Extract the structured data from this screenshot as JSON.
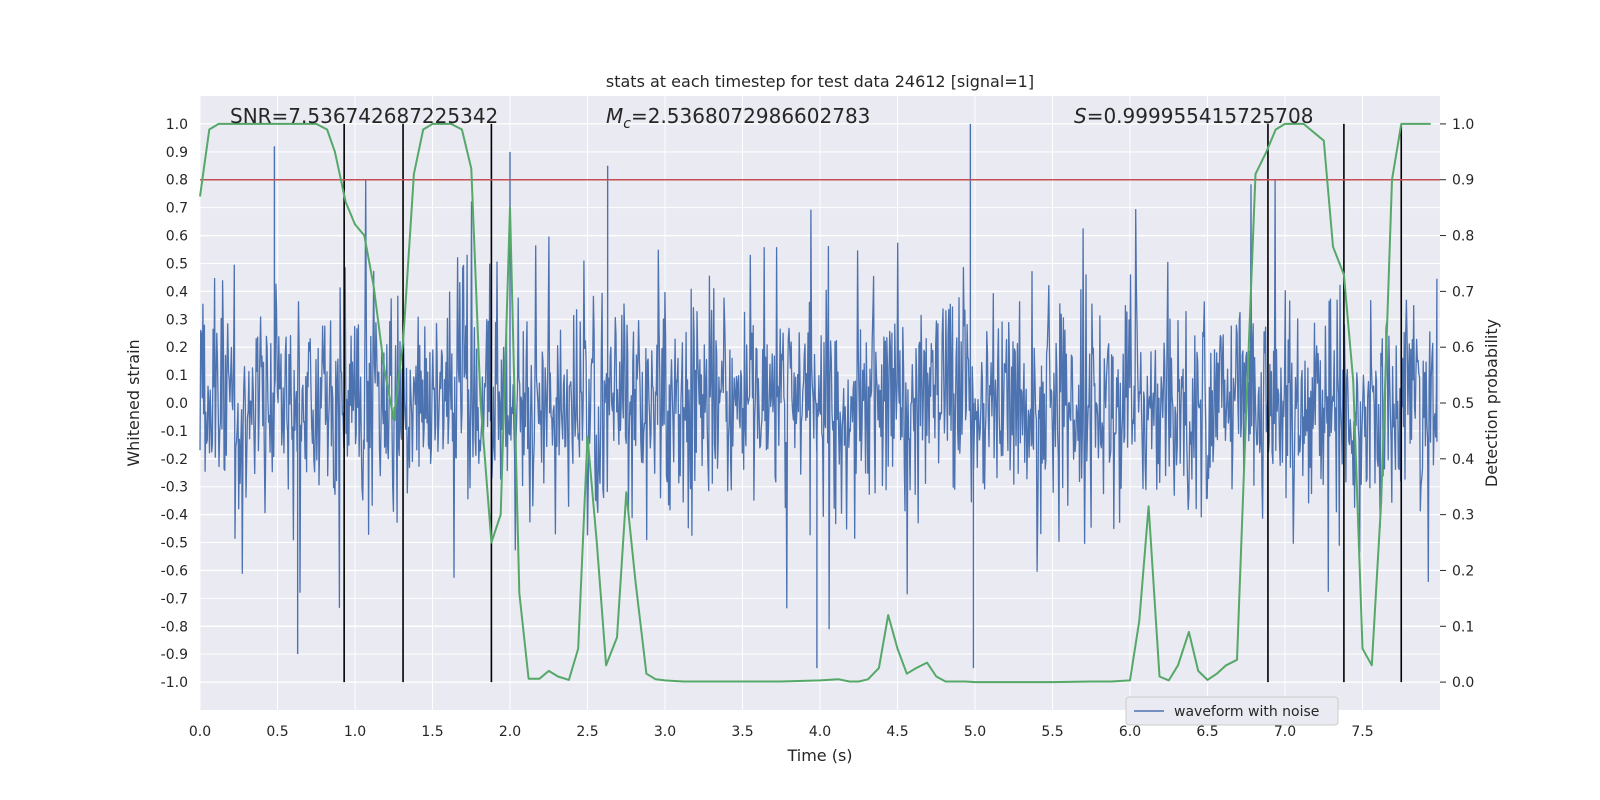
{
  "chart_data": {
    "type": "line",
    "title": "stats at each timestep for test data 24612 [signal=1]",
    "xlabel": "Time (s)",
    "ylabel": "Whitened strain",
    "y2label": "Detection probability",
    "xlim": [
      0.0,
      8.0
    ],
    "ylim": [
      -1.1,
      1.1
    ],
    "y2lim": [
      -0.05,
      1.05
    ],
    "xticks": [
      "0.0",
      "0.5",
      "1.0",
      "1.5",
      "2.0",
      "2.5",
      "3.0",
      "3.5",
      "4.0",
      "4.5",
      "5.0",
      "5.5",
      "6.0",
      "6.5",
      "7.0",
      "7.5"
    ],
    "xtick_values": [
      0.0,
      0.5,
      1.0,
      1.5,
      2.0,
      2.5,
      3.0,
      3.5,
      4.0,
      4.5,
      5.0,
      5.5,
      6.0,
      6.5,
      7.0,
      7.5
    ],
    "yticks": [
      "1.0",
      "0.9",
      "0.8",
      "0.7",
      "0.6",
      "0.5",
      "0.4",
      "0.3",
      "0.2",
      "0.1",
      "0.0",
      "-0.1",
      "-0.2",
      "-0.3",
      "-0.4",
      "-0.5",
      "-0.6",
      "-0.7",
      "-0.8",
      "-0.9",
      "-1.0"
    ],
    "ytick_values": [
      1.0,
      0.9,
      0.8,
      0.7,
      0.6,
      0.5,
      0.4,
      0.3,
      0.2,
      0.1,
      0.0,
      -0.1,
      -0.2,
      -0.3,
      -0.4,
      -0.5,
      -0.6,
      -0.7,
      -0.8,
      -0.9,
      -1.0
    ],
    "y2ticks": [
      "1.0",
      "0.9",
      "0.8",
      "0.7",
      "0.6",
      "0.5",
      "0.4",
      "0.3",
      "0.2",
      "0.1",
      "0.0"
    ],
    "y2tick_values": [
      1.0,
      0.9,
      0.8,
      0.7,
      0.6,
      0.5,
      0.4,
      0.3,
      0.2,
      0.1,
      0.0
    ],
    "annotations": {
      "snr": "SNR=7.536742687225342",
      "mc_prefix": "M",
      "mc_sub": "c",
      "mc_value": "=2.5368072986602783",
      "s_prefix": "S",
      "s_value": "=0.999955415725708"
    },
    "threshold": {
      "value": 0.9,
      "axis": "right",
      "color": "#c44e52"
    },
    "vlines_x": [
      0.93,
      1.31,
      1.88,
      6.89,
      7.38,
      7.75
    ],
    "legend": {
      "label": "waveform with noise",
      "placement": "lower center"
    },
    "grid": true,
    "series": [
      {
        "name": "waveform with noise",
        "color": "#4c72b0",
        "axis": "left",
        "x_range": [
          0.0,
          8.0
        ],
        "n_points": 1700,
        "typical_range": [
          -0.4,
          0.4
        ],
        "peak_envelope": [
          0.92,
          -0.96
        ]
      },
      {
        "color": "#55a868",
        "axis": "right",
        "x": [
          0.0,
          0.06,
          0.12,
          0.25,
          0.38,
          0.5,
          0.62,
          0.75,
          0.82,
          0.87,
          0.94,
          1.0,
          1.06,
          1.12,
          1.19,
          1.25,
          1.31,
          1.38,
          1.44,
          1.5,
          1.56,
          1.62,
          1.69,
          1.75,
          1.81,
          1.88,
          1.94,
          2.0,
          2.06,
          2.12,
          2.19,
          2.25,
          2.31,
          2.38,
          2.44,
          2.5,
          2.56,
          2.62,
          2.69,
          2.75,
          2.81,
          2.88,
          2.94,
          3.0,
          3.06,
          3.12,
          3.25,
          3.5,
          3.75,
          4.0,
          4.12,
          4.19,
          4.25,
          4.31,
          4.38,
          4.44,
          4.5,
          4.56,
          4.62,
          4.69,
          4.75,
          4.81,
          4.88,
          4.94,
          5.0,
          5.25,
          5.5,
          5.75,
          5.88,
          6.0,
          6.06,
          6.12,
          6.19,
          6.25,
          6.31,
          6.38,
          6.44,
          6.5,
          6.56,
          6.62,
          6.69,
          6.75,
          6.81,
          6.88,
          6.94,
          7.0,
          7.06,
          7.12,
          7.25,
          7.31,
          7.38,
          7.44,
          7.5,
          7.56,
          7.62,
          7.69,
          7.75,
          7.81,
          7.88,
          7.94
        ],
        "values": [
          0.87,
          0.99,
          1.0,
          1.0,
          1.0,
          1.0,
          1.0,
          1.0,
          0.99,
          0.95,
          0.86,
          0.82,
          0.8,
          0.71,
          0.56,
          0.47,
          0.61,
          0.91,
          0.99,
          1.0,
          1.0,
          1.0,
          0.99,
          0.92,
          0.5,
          0.25,
          0.3,
          0.85,
          0.16,
          0.006,
          0.006,
          0.02,
          0.01,
          0.004,
          0.06,
          0.44,
          0.25,
          0.03,
          0.08,
          0.34,
          0.18,
          0.015,
          0.005,
          0.003,
          0.002,
          0.001,
          0.001,
          0.001,
          0.001,
          0.003,
          0.005,
          0.001,
          0.001,
          0.005,
          0.025,
          0.12,
          0.06,
          0.015,
          0.025,
          0.035,
          0.01,
          0.001,
          0.001,
          0.001,
          0.0,
          0.0,
          0.0,
          0.001,
          0.001,
          0.003,
          0.11,
          0.315,
          0.01,
          0.003,
          0.03,
          0.09,
          0.02,
          0.004,
          0.015,
          0.03,
          0.04,
          0.49,
          0.91,
          0.95,
          0.99,
          1.0,
          1.0,
          1.0,
          0.97,
          0.78,
          0.73,
          0.54,
          0.06,
          0.03,
          0.32,
          0.9,
          1.0,
          1.0,
          1.0,
          1.0
        ]
      }
    ]
  }
}
